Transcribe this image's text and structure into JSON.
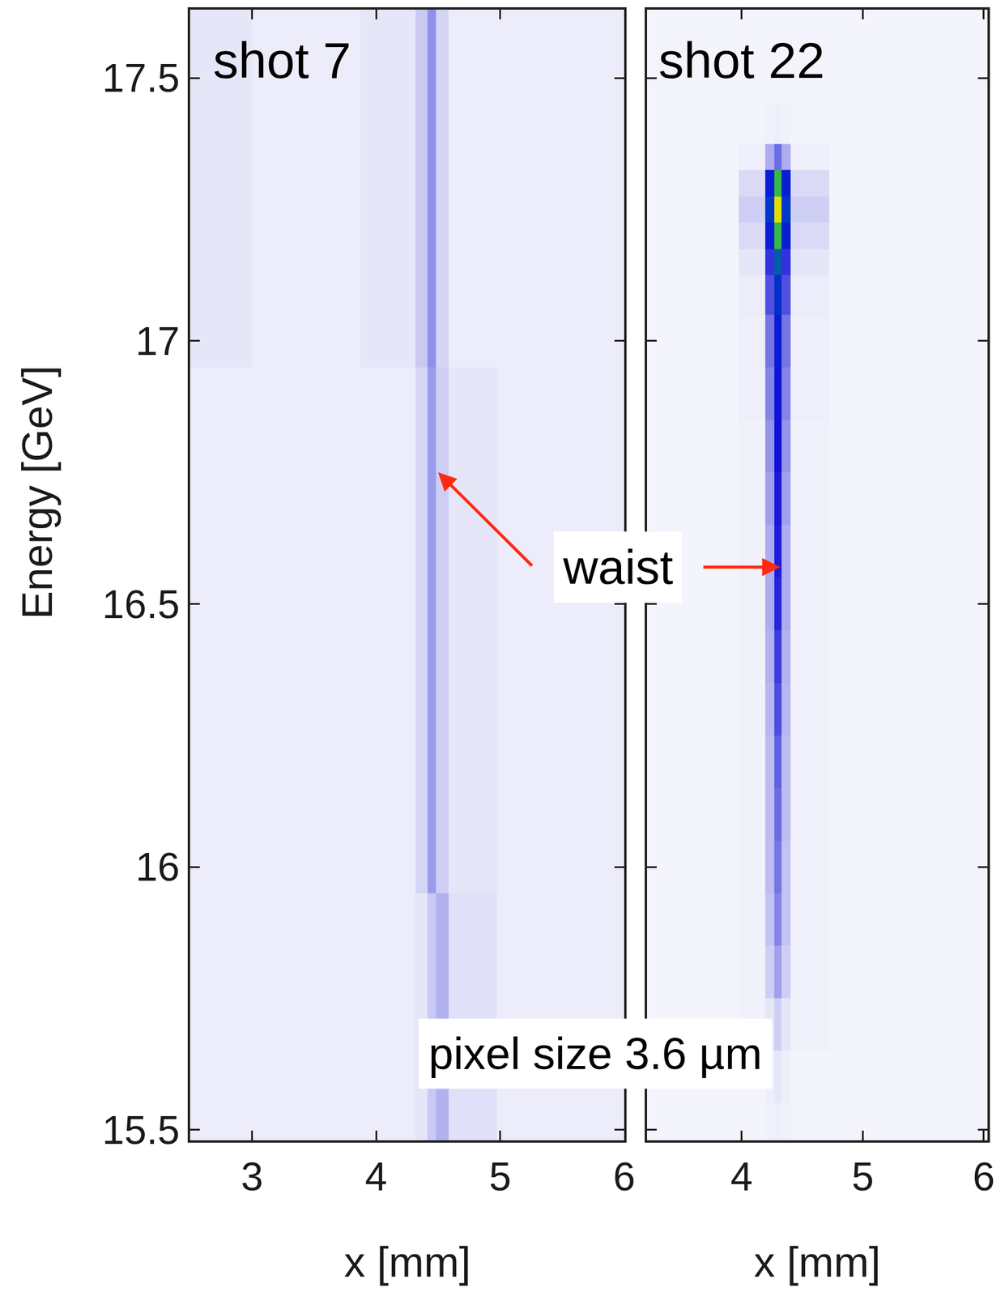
{
  "chart_data": {
    "type": "heatmap",
    "ylabel": "Energy [GeV]",
    "ylim": [
      15.48,
      17.63
    ],
    "yticks": [
      15.5,
      16,
      16.5,
      17,
      17.5
    ],
    "zlim": [
      0,
      1
    ],
    "arrow_label": "waist",
    "note": "pixel size 3.6 µm",
    "panels": [
      {
        "title": "shot 7",
        "xlabel": "x [mm]",
        "xlim": [
          2.5,
          6
        ],
        "xticks": [
          3,
          4,
          5,
          6
        ],
        "arrow_to": [
          4.5,
          16.75
        ],
        "x": [
          2.5,
          3.5,
          4.25,
          4.38,
          4.45,
          4.52,
          4.65,
          5.3,
          6.0
        ],
        "y": [
          15.5,
          15.6,
          15.7,
          15.8,
          15.9,
          16.0,
          16.1,
          16.2,
          16.3,
          16.4,
          16.5,
          16.6,
          16.7,
          16.8,
          16.9,
          17.0,
          17.1,
          17.2,
          17.3,
          17.4,
          17.5,
          17.6
        ],
        "z": [
          [
            0.07,
            0.07,
            0.07,
            0.08,
            0.13,
            0.17,
            0.09,
            0.07,
            0.07
          ],
          [
            0.07,
            0.07,
            0.07,
            0.08,
            0.13,
            0.17,
            0.09,
            0.07,
            0.07
          ],
          [
            0.07,
            0.07,
            0.07,
            0.08,
            0.13,
            0.17,
            0.09,
            0.07,
            0.07
          ],
          [
            0.07,
            0.07,
            0.07,
            0.08,
            0.13,
            0.17,
            0.09,
            0.07,
            0.07
          ],
          [
            0.07,
            0.07,
            0.07,
            0.08,
            0.13,
            0.17,
            0.09,
            0.07,
            0.07
          ],
          [
            0.07,
            0.07,
            0.07,
            0.11,
            0.21,
            0.12,
            0.08,
            0.07,
            0.07
          ],
          [
            0.07,
            0.07,
            0.07,
            0.11,
            0.21,
            0.12,
            0.08,
            0.07,
            0.07
          ],
          [
            0.07,
            0.07,
            0.07,
            0.11,
            0.21,
            0.12,
            0.08,
            0.07,
            0.07
          ],
          [
            0.07,
            0.07,
            0.07,
            0.11,
            0.21,
            0.12,
            0.08,
            0.07,
            0.07
          ],
          [
            0.07,
            0.07,
            0.07,
            0.11,
            0.21,
            0.12,
            0.08,
            0.07,
            0.07
          ],
          [
            0.07,
            0.07,
            0.07,
            0.11,
            0.21,
            0.12,
            0.08,
            0.07,
            0.07
          ],
          [
            0.07,
            0.07,
            0.07,
            0.11,
            0.21,
            0.12,
            0.08,
            0.07,
            0.07
          ],
          [
            0.07,
            0.07,
            0.07,
            0.11,
            0.21,
            0.12,
            0.08,
            0.07,
            0.07
          ],
          [
            0.07,
            0.07,
            0.07,
            0.11,
            0.21,
            0.12,
            0.08,
            0.07,
            0.07
          ],
          [
            0.07,
            0.07,
            0.07,
            0.11,
            0.21,
            0.12,
            0.08,
            0.07,
            0.07
          ],
          [
            0.08,
            0.07,
            0.08,
            0.13,
            0.23,
            0.11,
            0.07,
            0.07,
            0.07
          ],
          [
            0.08,
            0.07,
            0.08,
            0.13,
            0.23,
            0.11,
            0.07,
            0.07,
            0.07
          ],
          [
            0.08,
            0.07,
            0.08,
            0.13,
            0.23,
            0.11,
            0.07,
            0.07,
            0.07
          ],
          [
            0.08,
            0.07,
            0.08,
            0.13,
            0.23,
            0.11,
            0.07,
            0.07,
            0.07
          ],
          [
            0.08,
            0.07,
            0.08,
            0.13,
            0.23,
            0.11,
            0.07,
            0.07,
            0.07
          ],
          [
            0.08,
            0.07,
            0.08,
            0.13,
            0.23,
            0.11,
            0.07,
            0.07,
            0.07
          ],
          [
            0.08,
            0.07,
            0.08,
            0.13,
            0.23,
            0.11,
            0.07,
            0.07,
            0.07
          ]
        ]
      },
      {
        "title": "shot 22",
        "xlabel": "x [mm]",
        "xlim": [
          3.22,
          6.03
        ],
        "xticks": [
          4,
          5,
          6
        ],
        "tick_labels": "x",
        "arrow_to": [
          4.32,
          16.57
        ],
        "x": [
          3.22,
          3.8,
          4.15,
          4.24,
          4.3,
          4.36,
          4.45,
          5.0,
          6.03
        ],
        "y": [
          15.5,
          15.6,
          15.7,
          15.8,
          15.9,
          16.0,
          16.1,
          16.2,
          16.3,
          16.4,
          16.5,
          16.6,
          16.7,
          16.8,
          16.9,
          17.0,
          17.1,
          17.15,
          17.2,
          17.25,
          17.3,
          17.35,
          17.4,
          17.5,
          17.6
        ],
        "z": [
          [
            0.04,
            0.04,
            0.04,
            0.05,
            0.06,
            0.05,
            0.04,
            0.04,
            0.04
          ],
          [
            0.04,
            0.04,
            0.04,
            0.06,
            0.08,
            0.06,
            0.04,
            0.04,
            0.04
          ],
          [
            0.04,
            0.04,
            0.05,
            0.08,
            0.12,
            0.08,
            0.05,
            0.04,
            0.04
          ],
          [
            0.04,
            0.04,
            0.05,
            0.12,
            0.2,
            0.12,
            0.05,
            0.04,
            0.04
          ],
          [
            0.04,
            0.04,
            0.05,
            0.14,
            0.25,
            0.14,
            0.05,
            0.04,
            0.04
          ],
          [
            0.04,
            0.04,
            0.05,
            0.15,
            0.28,
            0.14,
            0.05,
            0.04,
            0.04
          ],
          [
            0.04,
            0.04,
            0.05,
            0.15,
            0.3,
            0.15,
            0.05,
            0.04,
            0.04
          ],
          [
            0.04,
            0.04,
            0.05,
            0.15,
            0.32,
            0.15,
            0.05,
            0.04,
            0.04
          ],
          [
            0.04,
            0.04,
            0.05,
            0.16,
            0.36,
            0.16,
            0.05,
            0.04,
            0.04
          ],
          [
            0.04,
            0.04,
            0.05,
            0.17,
            0.4,
            0.17,
            0.05,
            0.04,
            0.04
          ],
          [
            0.04,
            0.04,
            0.05,
            0.18,
            0.45,
            0.18,
            0.05,
            0.04,
            0.04
          ],
          [
            0.04,
            0.04,
            0.05,
            0.18,
            0.47,
            0.18,
            0.05,
            0.04,
            0.04
          ],
          [
            0.04,
            0.04,
            0.05,
            0.2,
            0.48,
            0.2,
            0.05,
            0.04,
            0.04
          ],
          [
            0.04,
            0.04,
            0.05,
            0.22,
            0.5,
            0.22,
            0.05,
            0.04,
            0.04
          ],
          [
            0.04,
            0.04,
            0.06,
            0.25,
            0.52,
            0.25,
            0.06,
            0.04,
            0.04
          ],
          [
            0.04,
            0.04,
            0.06,
            0.28,
            0.55,
            0.28,
            0.06,
            0.04,
            0.04
          ],
          [
            0.04,
            0.04,
            0.07,
            0.35,
            0.62,
            0.35,
            0.07,
            0.04,
            0.04
          ],
          [
            0.04,
            0.04,
            0.08,
            0.42,
            0.7,
            0.42,
            0.08,
            0.04,
            0.04
          ],
          [
            0.04,
            0.04,
            0.1,
            0.55,
            0.85,
            0.55,
            0.1,
            0.04,
            0.04
          ],
          [
            0.04,
            0.04,
            0.12,
            0.65,
            1,
            0.65,
            0.12,
            0.04,
            0.04
          ],
          [
            0.04,
            0.04,
            0.1,
            0.55,
            0.85,
            0.55,
            0.1,
            0.04,
            0.04
          ],
          [
            0.04,
            0.04,
            0.06,
            0.18,
            0.3,
            0.18,
            0.06,
            0.04,
            0.04
          ],
          [
            0.04,
            0.04,
            0.04,
            0.05,
            0.06,
            0.05,
            0.04,
            0.04,
            0.04
          ],
          [
            0.04,
            0.04,
            0.04,
            0.04,
            0.04,
            0.04,
            0.04,
            0.04,
            0.04
          ],
          [
            0.04,
            0.04,
            0.04,
            0.04,
            0.04,
            0.04,
            0.04,
            0.04,
            0.04
          ]
        ]
      }
    ]
  }
}
